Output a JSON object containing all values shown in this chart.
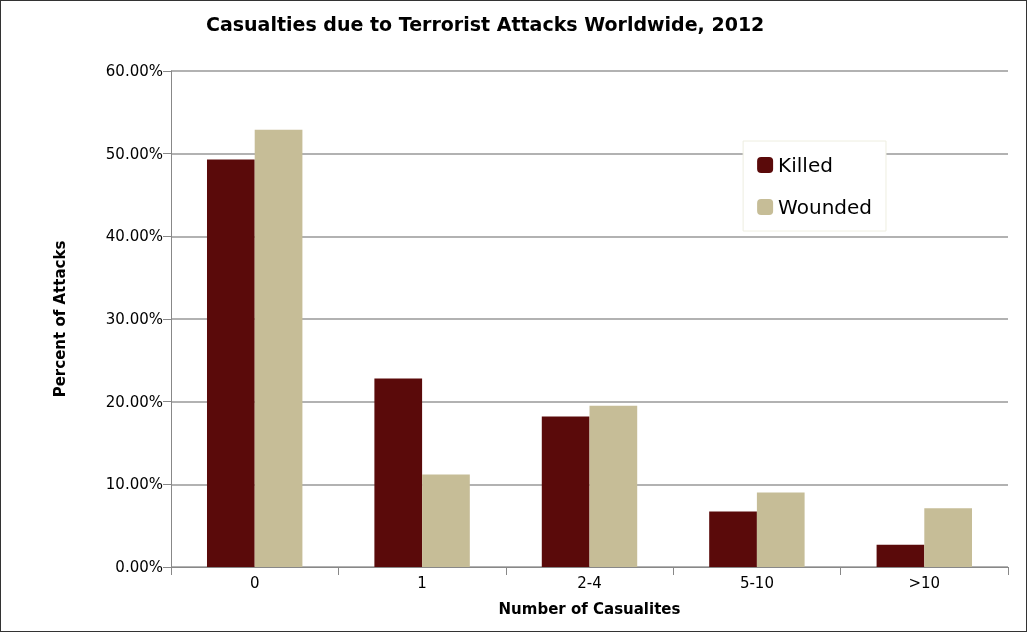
{
  "chart_data": {
    "type": "bar",
    "title": "Casualties due to Terrorist Attacks Worldwide, 2012",
    "xlabel": "Number of Casualites",
    "ylabel": "Percent of Attacks",
    "categories": [
      "0",
      "1",
      "2-4",
      "5-10",
      ">10"
    ],
    "series": [
      {
        "name": "Killed",
        "color": "#5a0a0a",
        "values": [
          49.3,
          22.8,
          18.2,
          6.7,
          2.7
        ]
      },
      {
        "name": "Wounded",
        "color": "#c6bd97",
        "values": [
          52.9,
          11.2,
          19.5,
          9.0,
          7.1
        ]
      }
    ],
    "ylim": [
      0,
      60
    ],
    "yticks": [
      {
        "value": 0,
        "label": "0.00%"
      },
      {
        "value": 10,
        "label": "10.00%"
      },
      {
        "value": 20,
        "label": "20.00%"
      },
      {
        "value": 30,
        "label": "30.00%"
      },
      {
        "value": 40,
        "label": "40.00%"
      },
      {
        "value": 50,
        "label": "50.00%"
      },
      {
        "value": 60,
        "label": "60.00%"
      }
    ],
    "grid": "y",
    "legend": "top right"
  }
}
